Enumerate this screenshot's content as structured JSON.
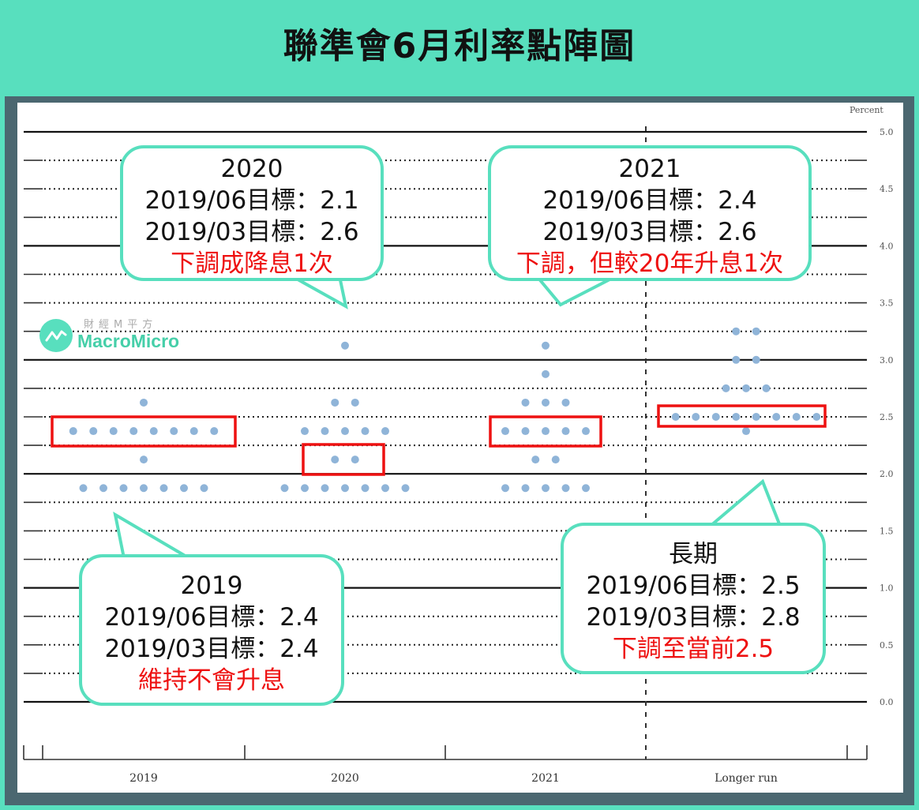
{
  "title": "聯準會6月利率點陣圖",
  "logo": {
    "cn": "財經M平方",
    "en": "MacroMicro"
  },
  "chart_data": {
    "type": "scatter",
    "title": "聯準會6月利率點陣圖",
    "ylabel": "Percent",
    "ylim": [
      0,
      5
    ],
    "yticks": [
      "5.0",
      "4.5",
      "4.0",
      "3.5",
      "3.0",
      "2.5",
      "2.0",
      "1.5",
      "1.0",
      "0.5",
      "0.0"
    ],
    "categories": [
      "2019",
      "2020",
      "2021",
      "Longer run"
    ],
    "grid": "solid at whole numbers, dotted at 0.25 increments",
    "dots": {
      "2019": [
        {
          "rate": 2.625,
          "count": 1
        },
        {
          "rate": 2.375,
          "count": 8
        },
        {
          "rate": 2.125,
          "count": 1
        },
        {
          "rate": 1.875,
          "count": 7
        }
      ],
      "2020": [
        {
          "rate": 3.125,
          "count": 1
        },
        {
          "rate": 2.625,
          "count": 2
        },
        {
          "rate": 2.375,
          "count": 5
        },
        {
          "rate": 2.125,
          "count": 2
        },
        {
          "rate": 1.875,
          "count": 7
        }
      ],
      "2021": [
        {
          "rate": 3.125,
          "count": 1
        },
        {
          "rate": 2.875,
          "count": 1
        },
        {
          "rate": 2.625,
          "count": 3
        },
        {
          "rate": 2.375,
          "count": 5
        },
        {
          "rate": 2.125,
          "count": 2
        },
        {
          "rate": 1.875,
          "count": 5
        }
      ],
      "Longer run": [
        {
          "rate": 3.25,
          "count": 2
        },
        {
          "rate": 3.0,
          "count": 2
        },
        {
          "rate": 2.75,
          "count": 3
        },
        {
          "rate": 2.5,
          "count": 8
        },
        {
          "rate": 2.375,
          "count": 1
        }
      ]
    },
    "highlights": [
      {
        "category": "2019",
        "rate": 2.375
      },
      {
        "category": "2020",
        "rate": 2.125
      },
      {
        "category": "2021",
        "rate": 2.375
      },
      {
        "category": "Longer run",
        "rate": 2.5
      }
    ],
    "annotations": [
      {
        "category": "2020",
        "lines": [
          "2020",
          "2019/06目標：2.1",
          "2019/03目標：2.6"
        ],
        "note": "下調成降息1次"
      },
      {
        "category": "2021",
        "lines": [
          "2021",
          "2019/06目標：2.4",
          "2019/03目標：2.6"
        ],
        "note": "下調，但較20年升息1次"
      },
      {
        "category": "2019",
        "lines": [
          "2019",
          "2019/06目標：2.4",
          "2019/03目標：2.4"
        ],
        "note": "維持不會升息"
      },
      {
        "category": "Longer run",
        "lines": [
          "長期",
          "2019/06目標：2.5",
          "2019/03目標：2.8"
        ],
        "note": "下調至當前2.5"
      }
    ]
  },
  "bubbles": {
    "b2020": {
      "l1": "2020",
      "l2": "2019/06目標：2.1",
      "l3": "2019/03目標：2.6",
      "note": "下調成降息1次"
    },
    "b2021": {
      "l1": "2021",
      "l2": "2019/06目標：2.4",
      "l3": "2019/03目標：2.6",
      "note": "下調，但較20年升息1次"
    },
    "b2019": {
      "l1": "2019",
      "l2": "2019/06目標：2.4",
      "l3": "2019/03目標：2.4",
      "note": "維持不會升息"
    },
    "blong": {
      "l1": "長期",
      "l2": "2019/06目標：2.5",
      "l3": "2019/03目標：2.8",
      "note": "下調至當前2.5"
    }
  },
  "colors": {
    "background": "#58dfbe",
    "frame": "#4b6770",
    "dot": "#8fb4d8",
    "highlight": "#ee1111",
    "bubble_border": "#58dfbe"
  }
}
